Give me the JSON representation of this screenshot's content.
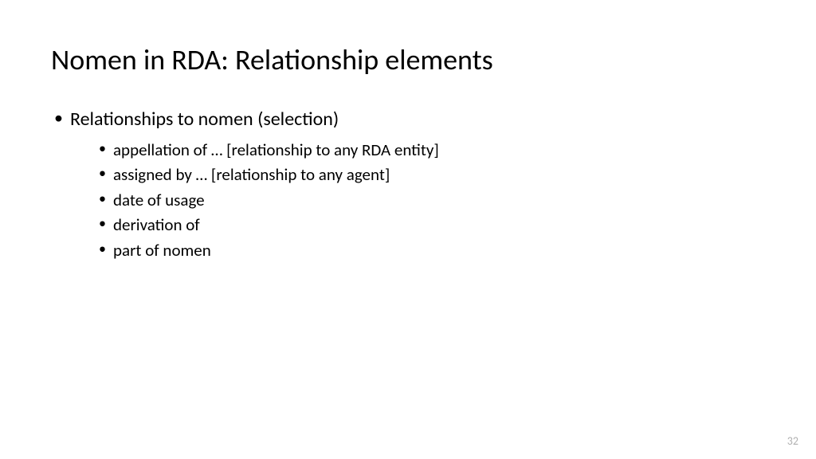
{
  "slide": {
    "title": "Nomen in RDA: Relationship elements",
    "bullets": {
      "level1": [
        {
          "text": "Relationships to nomen (selection)",
          "children": [
            "appellation of … [relationship to any RDA entity]",
            "assigned by … [relationship to any agent]",
            "date of usage",
            "derivation of",
            "part of nomen"
          ]
        }
      ]
    },
    "page_number": "32",
    "colors": {
      "background": "#ffffff",
      "text": "#000000",
      "page_number": "#b0b0b0"
    },
    "typography": {
      "title_fontsize": 36,
      "level1_fontsize": 24,
      "level2_fontsize": 21,
      "font_family": "Calibri"
    }
  }
}
